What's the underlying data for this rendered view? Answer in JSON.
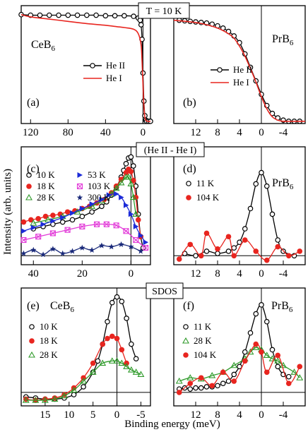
{
  "figure": {
    "top_label": "T = 10 K",
    "middle_label": "(He II - He I)",
    "bottom_label": "SDOS",
    "ylabel": "Intensity (arb. units)",
    "xlabel": "Binding energy (meV)"
  },
  "colors": {
    "black": "#000000",
    "red": "#e8251f",
    "blue": "#1c2bd8",
    "green": "#2f9a2a",
    "magenta": "#e23ad8",
    "navy": "#1a2a7a"
  },
  "chart_data": [
    {
      "panel": "(a)",
      "type": "line",
      "material": "CeB6",
      "xlim": [
        130,
        -8
      ],
      "ylim": [
        0,
        1.05
      ],
      "grid": false,
      "xticks": [
        120,
        80,
        40,
        0
      ],
      "xticklabels": [
        "120",
        "80",
        "40",
        "0"
      ],
      "legend_placement": "center-right",
      "series": [
        {
          "name": "He II",
          "style": "open-circle-line",
          "color": "#000000",
          "x": [
            130,
            120,
            110,
            100,
            90,
            80,
            70,
            60,
            50,
            40,
            30,
            20,
            10,
            5,
            3,
            2,
            1,
            0,
            -1,
            -2,
            -3,
            -4,
            -6,
            -8
          ],
          "y": [
            0.97,
            0.965,
            0.965,
            0.965,
            0.965,
            0.965,
            0.965,
            0.965,
            0.965,
            0.96,
            0.96,
            0.96,
            0.955,
            0.94,
            0.92,
            0.88,
            0.75,
            0.45,
            0.2,
            0.07,
            0.03,
            0.02,
            0.02,
            0.02
          ]
        },
        {
          "name": "He I",
          "style": "line",
          "color": "#e8251f",
          "x": [
            130,
            120,
            100,
            80,
            60,
            40,
            30,
            20,
            10,
            5,
            2,
            1,
            0,
            -1,
            -2,
            -3,
            -5,
            -8
          ],
          "y": [
            0.97,
            0.95,
            0.93,
            0.91,
            0.89,
            0.875,
            0.865,
            0.855,
            0.84,
            0.8,
            0.7,
            0.55,
            0.35,
            0.15,
            0.06,
            0.03,
            0.02,
            0.02
          ]
        }
      ]
    },
    {
      "panel": "(b)",
      "type": "line",
      "material": "PrB6",
      "xlim": [
        16,
        -8
      ],
      "ylim": [
        0,
        1.05
      ],
      "grid": false,
      "xticks": [
        12,
        8,
        4,
        0,
        -4
      ],
      "xticklabels": [
        "12",
        "8",
        "4",
        "0",
        "-4"
      ],
      "legend_placement": "center-right",
      "series": [
        {
          "name": "He II",
          "style": "open-circle-line",
          "color": "#000000",
          "x": [
            15,
            14,
            13,
            12,
            11,
            10,
            9,
            8,
            7,
            6,
            5,
            4,
            3,
            2,
            1,
            0,
            -1,
            -2,
            -3,
            -4,
            -5,
            -6,
            -7
          ],
          "y": [
            0.92,
            0.915,
            0.91,
            0.905,
            0.9,
            0.895,
            0.885,
            0.87,
            0.85,
            0.82,
            0.78,
            0.72,
            0.62,
            0.5,
            0.38,
            0.26,
            0.16,
            0.09,
            0.05,
            0.03,
            0.02,
            0.02,
            0.02
          ]
        },
        {
          "name": "He I",
          "style": "line",
          "color": "#e8251f",
          "x": [
            16,
            12,
            10,
            8,
            6,
            5,
            4,
            3,
            2,
            1,
            0,
            -1,
            -2,
            -3,
            -4,
            -6,
            -8
          ],
          "y": [
            0.92,
            0.9,
            0.88,
            0.85,
            0.8,
            0.76,
            0.69,
            0.6,
            0.49,
            0.37,
            0.24,
            0.13,
            0.06,
            0.03,
            0.02,
            0.02,
            0.02
          ]
        }
      ]
    },
    {
      "panel": "(c)",
      "type": "scatter",
      "material": "",
      "xlim": [
        45,
        -8
      ],
      "ylim": [
        0,
        1.05
      ],
      "grid": false,
      "xticks": [
        40,
        20,
        0
      ],
      "xticklabels": [
        "40",
        "20",
        "0"
      ],
      "legend_placement": "top-left",
      "series": [
        {
          "name": "10 K",
          "marker": "open-circle",
          "color": "#000000",
          "x": [
            40,
            36,
            32,
            28,
            24,
            20,
            16,
            12,
            10,
            8,
            6,
            4,
            3,
            2,
            1,
            0,
            -1,
            -2,
            -3,
            -4,
            -5
          ],
          "y": [
            0.32,
            0.34,
            0.36,
            0.38,
            0.4,
            0.43,
            0.47,
            0.52,
            0.56,
            0.62,
            0.69,
            0.78,
            0.84,
            0.9,
            0.95,
            0.96,
            0.88,
            0.7,
            0.45,
            0.25,
            0.15
          ]
        },
        {
          "name": "18 K",
          "marker": "filled-circle",
          "color": "#e8251f",
          "x": [
            44,
            41,
            38,
            35,
            32,
            29,
            26,
            23,
            20,
            17,
            14,
            11,
            8,
            6,
            4,
            2,
            1,
            0,
            -1,
            -2,
            -3,
            -4
          ],
          "y": [
            0.38,
            0.4,
            0.41,
            0.43,
            0.44,
            0.45,
            0.47,
            0.48,
            0.5,
            0.52,
            0.55,
            0.58,
            0.64,
            0.7,
            0.76,
            0.82,
            0.85,
            0.83,
            0.75,
            0.6,
            0.4,
            0.25
          ]
        },
        {
          "name": "28 K",
          "marker": "open-triangle",
          "color": "#2f9a2a",
          "x": [
            40,
            34,
            28,
            22,
            16,
            12,
            8,
            6,
            4,
            2,
            1,
            0,
            -1,
            -2
          ],
          "y": [
            0.37,
            0.4,
            0.43,
            0.47,
            0.52,
            0.57,
            0.63,
            0.68,
            0.73,
            0.78,
            0.78,
            0.72,
            0.6,
            0.45
          ]
        },
        {
          "name": "53 K",
          "marker": "filled-triangle-right",
          "color": "#1c2bd8",
          "x": [
            44,
            40,
            36,
            32,
            28,
            24,
            20,
            16,
            12,
            9,
            6,
            4,
            2,
            0,
            -2,
            -4,
            -6
          ],
          "y": [
            0.3,
            0.33,
            0.36,
            0.39,
            0.42,
            0.46,
            0.5,
            0.54,
            0.58,
            0.62,
            0.63,
            0.6,
            0.53,
            0.45,
            0.34,
            0.26,
            0.2
          ]
        },
        {
          "name": "103 K",
          "marker": "crossed-square",
          "color": "#e23ad8",
          "x": [
            44,
            38,
            32,
            26,
            20,
            14,
            10,
            6,
            2,
            -2,
            -6
          ],
          "y": [
            0.22,
            0.25,
            0.28,
            0.31,
            0.34,
            0.36,
            0.36,
            0.35,
            0.3,
            0.22,
            0.15
          ]
        },
        {
          "name": "300 K",
          "marker": "filled-star",
          "color": "#1a2a7a",
          "x": [
            44,
            40,
            36,
            32,
            28,
            24,
            20,
            16,
            12,
            8,
            4,
            0,
            -4
          ],
          "y": [
            0.1,
            0.13,
            0.09,
            0.14,
            0.1,
            0.12,
            0.15,
            0.13,
            0.17,
            0.16,
            0.18,
            0.16,
            0.12
          ]
        }
      ]
    },
    {
      "panel": "(d)",
      "type": "scatter",
      "material": "PrB6",
      "xlim": [
        16,
        -8
      ],
      "ylim": [
        0,
        1.05
      ],
      "grid": false,
      "xticks": [
        12,
        8,
        4,
        0,
        -4
      ],
      "xticklabels": [
        "12",
        "8",
        "4",
        "0",
        "-4"
      ],
      "legend_placement": "top-left",
      "series": [
        {
          "name": "11 K",
          "marker": "open-circle",
          "color": "#000000",
          "x": [
            14,
            12,
            10,
            8,
            6,
            5,
            4,
            3,
            2,
            1,
            0,
            -1,
            -2,
            -3,
            -4,
            -6
          ],
          "y": [
            0.1,
            0.08,
            0.12,
            0.1,
            0.12,
            0.15,
            0.2,
            0.32,
            0.5,
            0.72,
            0.82,
            0.7,
            0.45,
            0.22,
            0.12,
            0.08
          ]
        },
        {
          "name": "104 K",
          "marker": "filled-circle",
          "color": "#e8251f",
          "x": [
            15,
            13,
            11,
            10,
            8,
            6,
            5,
            3,
            1,
            -1,
            -3,
            -5,
            -7
          ],
          "y": [
            0.05,
            0.18,
            0.08,
            0.28,
            0.14,
            0.25,
            0.08,
            0.22,
            0.12,
            0.04,
            0.16,
            0.08,
            0.12
          ]
        }
      ]
    },
    {
      "panel": "(e)",
      "type": "line",
      "material": "CeB6",
      "xlim": [
        20,
        -7
      ],
      "ylim": [
        0,
        1.05
      ],
      "grid": false,
      "xticks": [
        15,
        10,
        5,
        0,
        -5
      ],
      "xticklabels": [
        "15",
        "10",
        "5",
        "0",
        "-5"
      ],
      "legend_placement": "center-left",
      "series": [
        {
          "name": "10 K",
          "marker": "open-circle",
          "color": "#000000",
          "x": [
            19,
            17,
            15,
            13,
            11,
            9,
            7,
            5,
            4,
            3,
            2,
            1,
            0,
            -1,
            -2,
            -3,
            -4
          ],
          "y": [
            0.08,
            0.07,
            0.06,
            0.06,
            0.07,
            0.1,
            0.17,
            0.3,
            0.4,
            0.55,
            0.75,
            0.92,
            0.97,
            0.93,
            0.78,
            0.55,
            0.42
          ]
        },
        {
          "name": "18 K",
          "marker": "filled-circle",
          "color": "#e8251f",
          "x": [
            19,
            17,
            15,
            13,
            11,
            9,
            7,
            5,
            3,
            2,
            1,
            0,
            -1,
            -2
          ],
          "y": [
            0.06,
            0.05,
            0.06,
            0.07,
            0.1,
            0.16,
            0.25,
            0.38,
            0.55,
            0.6,
            0.62,
            0.6,
            0.5,
            0.38
          ]
        },
        {
          "name": "28 K",
          "marker": "open-triangle",
          "color": "#2f9a2a",
          "x": [
            19,
            17,
            15,
            13,
            11,
            9,
            7,
            5,
            3,
            1,
            0,
            -1,
            -2,
            -3,
            -4,
            -5
          ],
          "y": [
            0.05,
            0.05,
            0.05,
            0.06,
            0.09,
            0.14,
            0.22,
            0.3,
            0.38,
            0.4,
            0.4,
            0.38,
            0.35,
            0.32,
            0.3,
            0.28
          ]
        }
      ]
    },
    {
      "panel": "(f)",
      "type": "line",
      "material": "PrB6",
      "xlim": [
        16,
        -8
      ],
      "ylim": [
        0,
        1.05
      ],
      "grid": false,
      "xticks": [
        12,
        8,
        4,
        0,
        -4
      ],
      "xticklabels": [
        "12",
        "8",
        "4",
        "0",
        "-4"
      ],
      "legend_placement": "top-left",
      "series": [
        {
          "name": "11 K",
          "marker": "open-circle",
          "color": "#000000",
          "x": [
            15,
            14,
            13,
            12,
            11,
            10,
            9,
            8,
            7,
            6,
            5,
            4,
            3,
            2,
            1,
            0,
            -1,
            -2,
            -3,
            -4,
            -5
          ],
          "y": [
            0.15,
            0.16,
            0.15,
            0.16,
            0.16,
            0.17,
            0.17,
            0.18,
            0.2,
            0.22,
            0.28,
            0.35,
            0.48,
            0.65,
            0.82,
            0.9,
            0.75,
            0.5,
            0.35,
            0.28,
            0.26
          ]
        },
        {
          "name": "28 K",
          "marker": "open-triangle",
          "color": "#2f9a2a",
          "x": [
            15,
            13,
            11,
            9,
            7,
            5,
            3,
            2,
            1,
            0,
            -1,
            -2,
            -3,
            -4,
            -6,
            -7
          ],
          "y": [
            0.22,
            0.25,
            0.24,
            0.27,
            0.3,
            0.36,
            0.42,
            0.48,
            0.52,
            0.5,
            0.45,
            0.42,
            0.4,
            0.36,
            0.3,
            0.25
          ]
        },
        {
          "name": "104 K",
          "marker": "filled-circle",
          "color": "#e8251f",
          "x": [
            15,
            13,
            11,
            9,
            7,
            5,
            3,
            1,
            0,
            -1,
            -3,
            -5,
            -7
          ],
          "y": [
            0.12,
            0.2,
            0.25,
            0.18,
            0.3,
            0.22,
            0.4,
            0.55,
            0.48,
            0.3,
            0.45,
            0.2,
            0.35
          ]
        }
      ]
    }
  ]
}
